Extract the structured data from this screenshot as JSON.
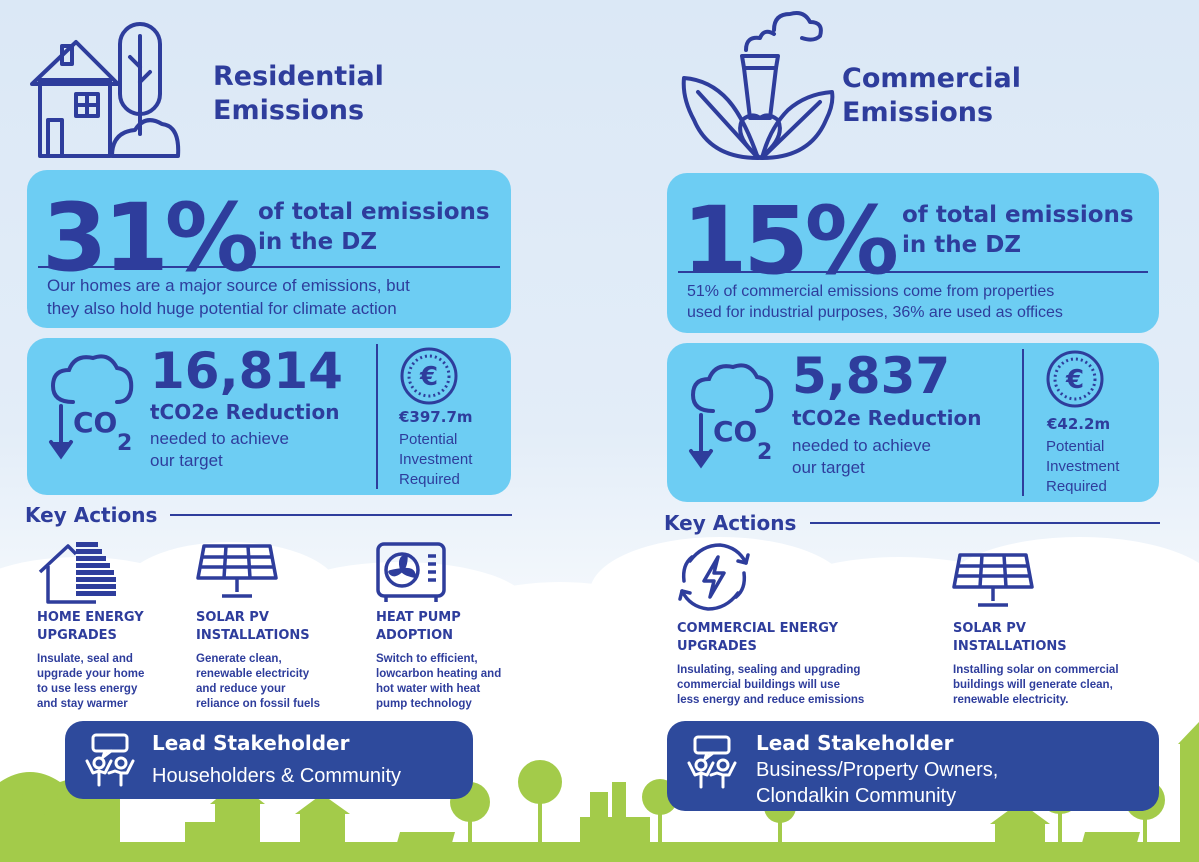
{
  "colors": {
    "navy": "#2e3d9c",
    "light_blue_box": "#6dcdf3",
    "lead_box": "#2e4a9c",
    "green_landscape": "#a3cb4a"
  },
  "residential": {
    "icon": "house-tree-icon",
    "title_line1": "Residential",
    "title_line2": "Emissions",
    "percent": "31%",
    "percent_label_line1": "of total emissions",
    "percent_label_line2": "in the DZ",
    "description_line1": "Our homes are a major source of emissions, but",
    "description_line2": "they also hold huge potential for climate action",
    "reduction_icon": "co2-cloud-down-icon",
    "reduction_value": "16,814",
    "reduction_unit": "tCO2e Reduction",
    "reduction_desc_line1": "needed to achieve",
    "reduction_desc_line2": "our target",
    "investment_icon": "euro-coin-icon",
    "investment_value": "€397.7m",
    "investment_desc_line1": "Potential",
    "investment_desc_line2": "Investment",
    "investment_desc_line3": "Required",
    "key_actions_title": "Key Actions",
    "actions": [
      {
        "icon": "energy-rating-house-icon",
        "title_line1": "HOME ENERGY",
        "title_line2": "UPGRADES",
        "desc": [
          "Insulate, seal and",
          "upgrade your home",
          "to use less energy",
          "and stay warmer"
        ]
      },
      {
        "icon": "solar-panel-icon",
        "title_line1": "SOLAR PV",
        "title_line2": "INSTALLATIONS",
        "desc": [
          "Generate clean,",
          "renewable electricity",
          "and reduce your",
          "reliance on fossil fuels"
        ]
      },
      {
        "icon": "heat-pump-icon",
        "title_line1": "HEAT PUMP",
        "title_line2": "ADOPTION",
        "desc": [
          "Switch to efficient,",
          "lowcarbon heating and",
          "hot water with heat",
          "pump technology"
        ]
      }
    ],
    "lead_icon": "stakeholder-group-icon",
    "lead_title": "Lead Stakeholder",
    "lead_desc_line1": "Householders & Community"
  },
  "commercial": {
    "icon": "factory-leaf-icon",
    "title_line1": "Commercial",
    "title_line2": "Emissions",
    "percent": "15%",
    "percent_label_line1": "of total emissions",
    "percent_label_line2": "in the DZ",
    "description_line1": "51% of commercial emissions come from properties",
    "description_line2": "used for industrial purposes, 36% are used as offices",
    "reduction_icon": "co2-cloud-down-icon",
    "reduction_value": "5,837",
    "reduction_unit": "tCO2e Reduction",
    "reduction_desc_line1": "needed to achieve",
    "reduction_desc_line2": "our target",
    "investment_icon": "euro-coin-icon",
    "investment_value": "€42.2m",
    "investment_desc_line1": "Potential",
    "investment_desc_line2": "Investment",
    "investment_desc_line3": "Required",
    "key_actions_title": "Key Actions",
    "actions": [
      {
        "icon": "energy-cycle-icon",
        "title_line1": "COMMERCIAL ENERGY",
        "title_line2": "UPGRADES",
        "desc": [
          "Insulating, sealing and upgrading",
          "commercial buildings will use",
          "less energy and reduce emissions"
        ]
      },
      {
        "icon": "solar-panel-icon",
        "title_line1": "SOLAR PV",
        "title_line2": "INSTALLATIONS",
        "desc": [
          "Installing solar on commercial",
          "buildings will generate clean,",
          "renewable electricity."
        ]
      }
    ],
    "lead_icon": "stakeholder-group-icon",
    "lead_title": "Lead Stakeholder",
    "lead_desc_line1": "Business/Property Owners,",
    "lead_desc_line2": "Clondalkin Community"
  }
}
